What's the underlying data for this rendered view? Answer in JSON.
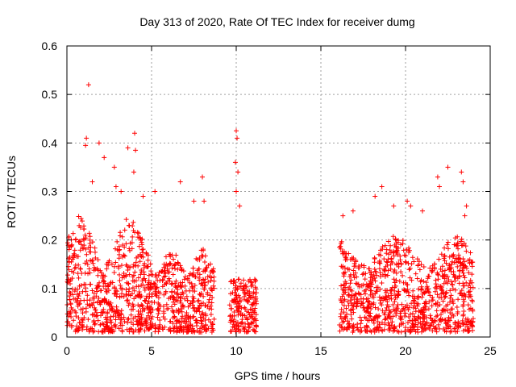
{
  "chart_data": {
    "type": "scatter",
    "title": "Day 313 of 2020, Rate Of TEC Index for receiver dumg",
    "xlabel": "GPS time / hours",
    "ylabel": "ROTI / TECUs",
    "xlim": [
      0,
      25
    ],
    "ylim": [
      0,
      0.6
    ],
    "x_ticks": [
      "0",
      "5",
      "10",
      "15",
      "20",
      "25"
    ],
    "y_ticks": [
      "0",
      "0.1",
      "0.2",
      "0.3",
      "0.4",
      "0.5",
      "0.6"
    ],
    "grid": true,
    "marker": "+",
    "colors": {
      "points": "#ff0000",
      "grid": "#a0a0a0",
      "axes": "#000000"
    },
    "coverage_hours": [
      [
        0,
        8.7
      ],
      [
        9.6,
        11.2
      ],
      [
        16.1,
        24.0
      ]
    ],
    "series": [
      {
        "points": [
          [
            1.28,
            0.52
          ],
          [
            1.15,
            0.41
          ],
          [
            1.1,
            0.395
          ],
          [
            1.9,
            0.4
          ],
          [
            2.2,
            0.37
          ],
          [
            3.6,
            0.39
          ],
          [
            4.0,
            0.42
          ],
          [
            4.05,
            0.385
          ],
          [
            3.95,
            0.34
          ],
          [
            2.8,
            0.35
          ],
          [
            1.5,
            0.32
          ],
          [
            2.9,
            0.31
          ],
          [
            3.2,
            0.3
          ],
          [
            4.5,
            0.29
          ],
          [
            5.2,
            0.3
          ],
          [
            6.7,
            0.32
          ],
          [
            7.5,
            0.28
          ],
          [
            8.1,
            0.28
          ],
          [
            8.0,
            0.33
          ],
          [
            10.0,
            0.425
          ],
          [
            10.05,
            0.41
          ],
          [
            9.95,
            0.36
          ],
          [
            10.1,
            0.34
          ],
          [
            10.0,
            0.3
          ],
          [
            10.2,
            0.27
          ],
          [
            16.3,
            0.25
          ],
          [
            16.9,
            0.26
          ],
          [
            18.2,
            0.29
          ],
          [
            18.6,
            0.31
          ],
          [
            19.3,
            0.27
          ],
          [
            20.1,
            0.28
          ],
          [
            20.3,
            0.27
          ],
          [
            21.0,
            0.26
          ],
          [
            21.9,
            0.33
          ],
          [
            22.0,
            0.31
          ],
          [
            22.5,
            0.35
          ],
          [
            23.3,
            0.34
          ],
          [
            23.4,
            0.32
          ],
          [
            23.6,
            0.27
          ],
          [
            23.5,
            0.25
          ]
        ]
      }
    ]
  }
}
